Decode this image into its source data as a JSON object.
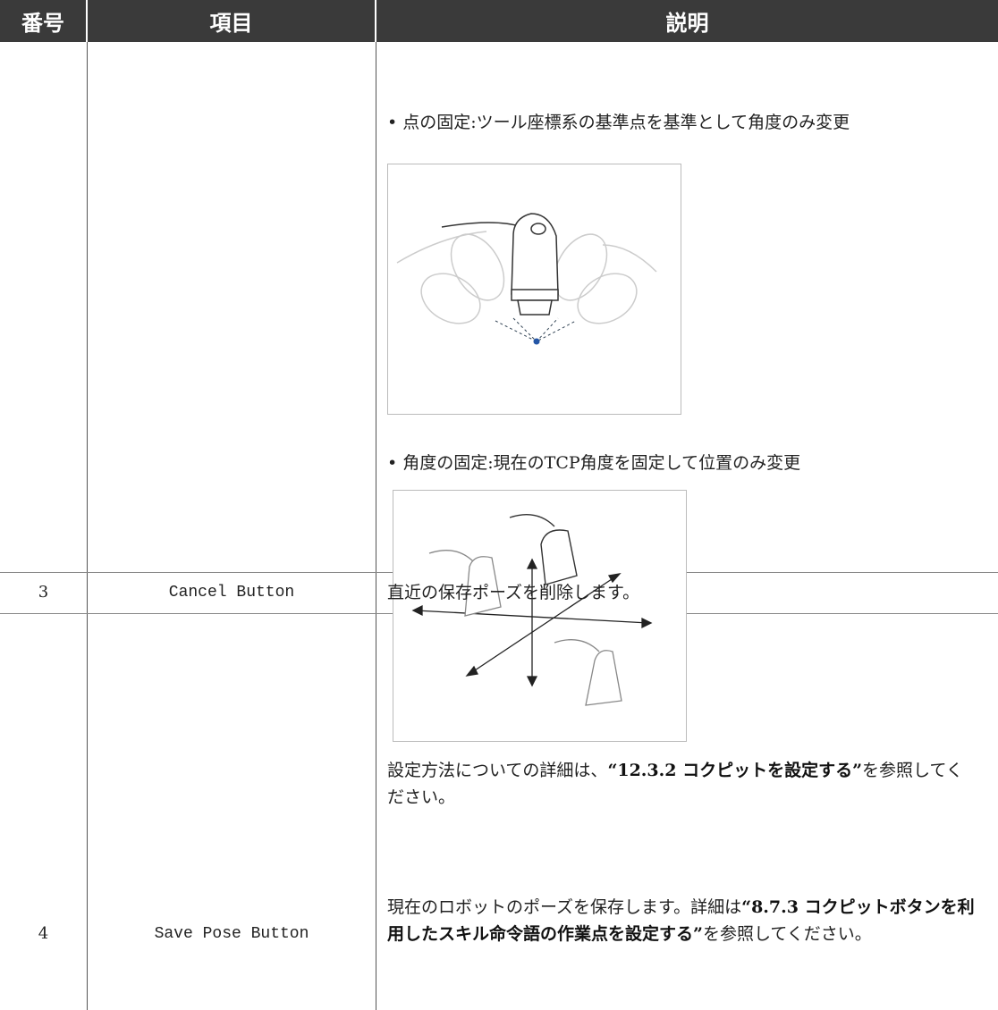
{
  "table": {
    "header": [
      "番号",
      "項目",
      "説明"
    ],
    "rows": [
      {
        "number": null,
        "item": null,
        "description": {
          "bullets": [
            "点の固定:ツール座標系の基準点を基準として角度のみ変更",
            "角度の固定:現在のTCP角度を固定して位置のみ変更"
          ],
          "note": [
            {
              "text": "設定方法についての詳細は、",
              "bold": false
            },
            {
              "text": "“12.3.2 コクピットを設定する”",
              "bold": true
            },
            {
              "text": "を参照してください。",
              "bold": false
            }
          ]
        }
      },
      {
        "number": "3",
        "item": "Cancel Button",
        "description": [
          {
            "text": "直近の保存ポーズを削除します。",
            "bold": false
          }
        ]
      },
      {
        "number": "4",
        "item": "Save Pose Button",
        "description": [
          {
            "text": "現在のロボットのポーズを保存します。詳細は",
            "bold": false
          },
          {
            "text": "“8.7.3 コクピットボタンを利用したスキル命令語の作業点を設定する”",
            "bold": true
          },
          {
            "text": "を参照してください。",
            "bold": false
          }
        ]
      }
    ]
  }
}
